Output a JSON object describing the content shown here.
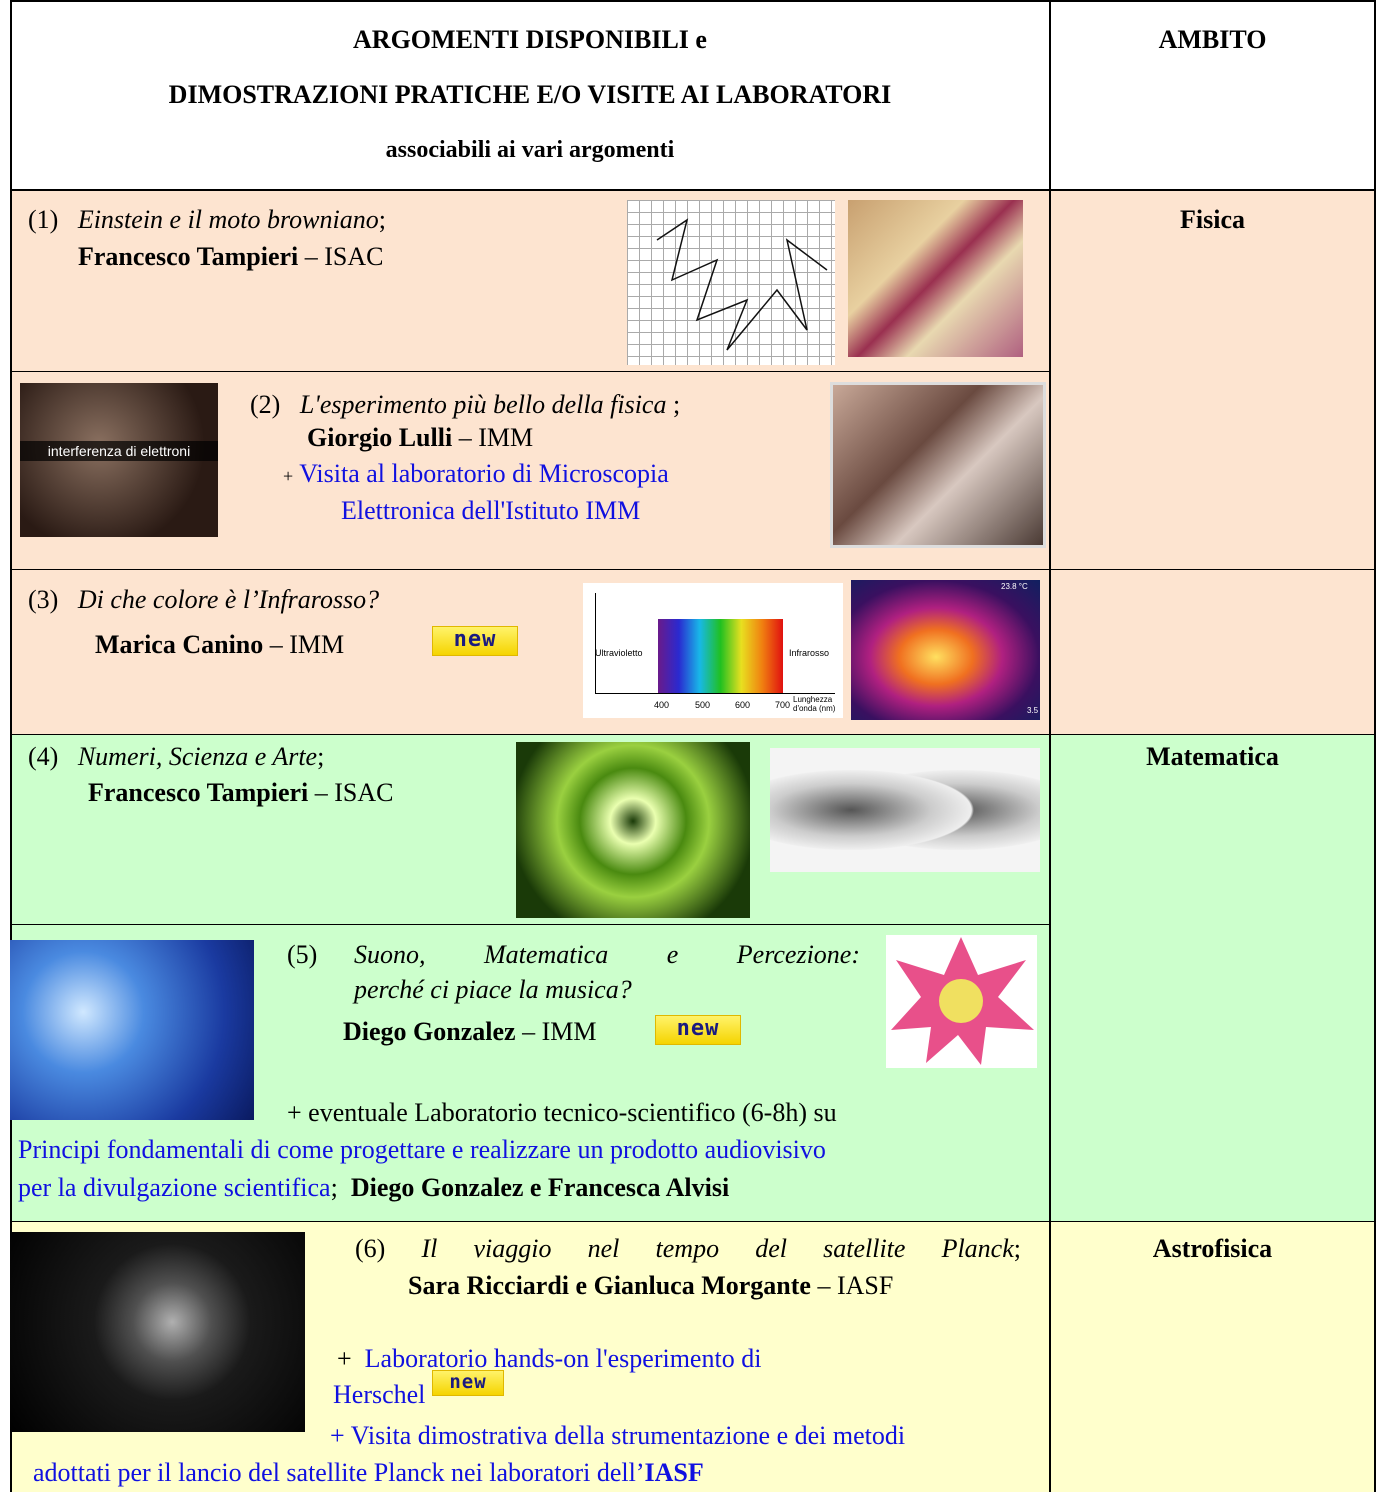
{
  "header": {
    "line1": "ARGOMENTI DISPONIBILI  e",
    "line2": "DIMOSTRAZIONI PRATICHE E/O  VISITE AI LABORATORI",
    "line3": "associabili ai vari argomenti",
    "ambito": "AMBITO"
  },
  "ambiti": [
    "Fisica",
    "Matematica",
    "Astrofisica"
  ],
  "rows": [
    {
      "number": "(1)",
      "title": "Einstein e il moto browniano",
      "punct": ";",
      "author": "Francesco Tampieri",
      "org": "– ISAC"
    },
    {
      "number": "(2)",
      "title": "L'esperimento più bello della fisica",
      "punct": " ;",
      "author": "Giorgio Lulli",
      "org": "– IMM",
      "plus": "+",
      "extra": [
        "Visita al laboratorio di Microscopia",
        "Elettronica dell'Istituto IMM"
      ],
      "image_caption": "interferenza di elettroni"
    },
    {
      "number": "(3)",
      "title": "Di che colore è l’Infrarosso?",
      "author": "Marica Canino",
      "org": "– IMM",
      "badge": "new",
      "spectrum": {
        "left": "Ultravioletto",
        "right": "Infrarosso",
        "ticks": [
          "400",
          "500",
          "600",
          "700"
        ],
        "axis": "Lunghezza d'onda (nm)"
      },
      "thermal": {
        "max": "23.8 °C",
        "min": "3.5"
      }
    },
    {
      "number": "(4)",
      "title": "Numeri, Scienza e Arte",
      "punct": ";",
      "author": "Francesco Tampieri",
      "org": "– ISAC"
    },
    {
      "number": "(5)",
      "title": [
        "Suono, Matematica e Percezione:",
        "perché ci piace la musica?"
      ],
      "author": "Diego Gonzalez",
      "org": "– IMM",
      "badge": "new",
      "extra_intro": "+ eventuale Laboratorio tecnico-scientifico (6-8h) su",
      "extra": [
        "Principi fondamentali di come progettare e realizzare un prodotto audiovisivo",
        "per la divulgazione scientifica"
      ],
      "punct": ";",
      "extra_authors": "Diego Gonzalez e Francesca Alvisi"
    },
    {
      "number": "(6)",
      "title": "Il viaggio nel tempo del satellite Planck",
      "punct": ";",
      "author": "Sara Ricciardi e Gianluca Morgante",
      "org": "– IASF",
      "plus": "+",
      "extra1": [
        "Laboratorio hands-on l'esperimento di",
        "Herschel"
      ],
      "badge": "new",
      "extra2": [
        "+ Visita dimostrativa della strumentazione e dei metodi",
        "adottati per il lancio del satellite Planck nei laboratori dell’"
      ],
      "extra2_org": "IASF"
    }
  ]
}
